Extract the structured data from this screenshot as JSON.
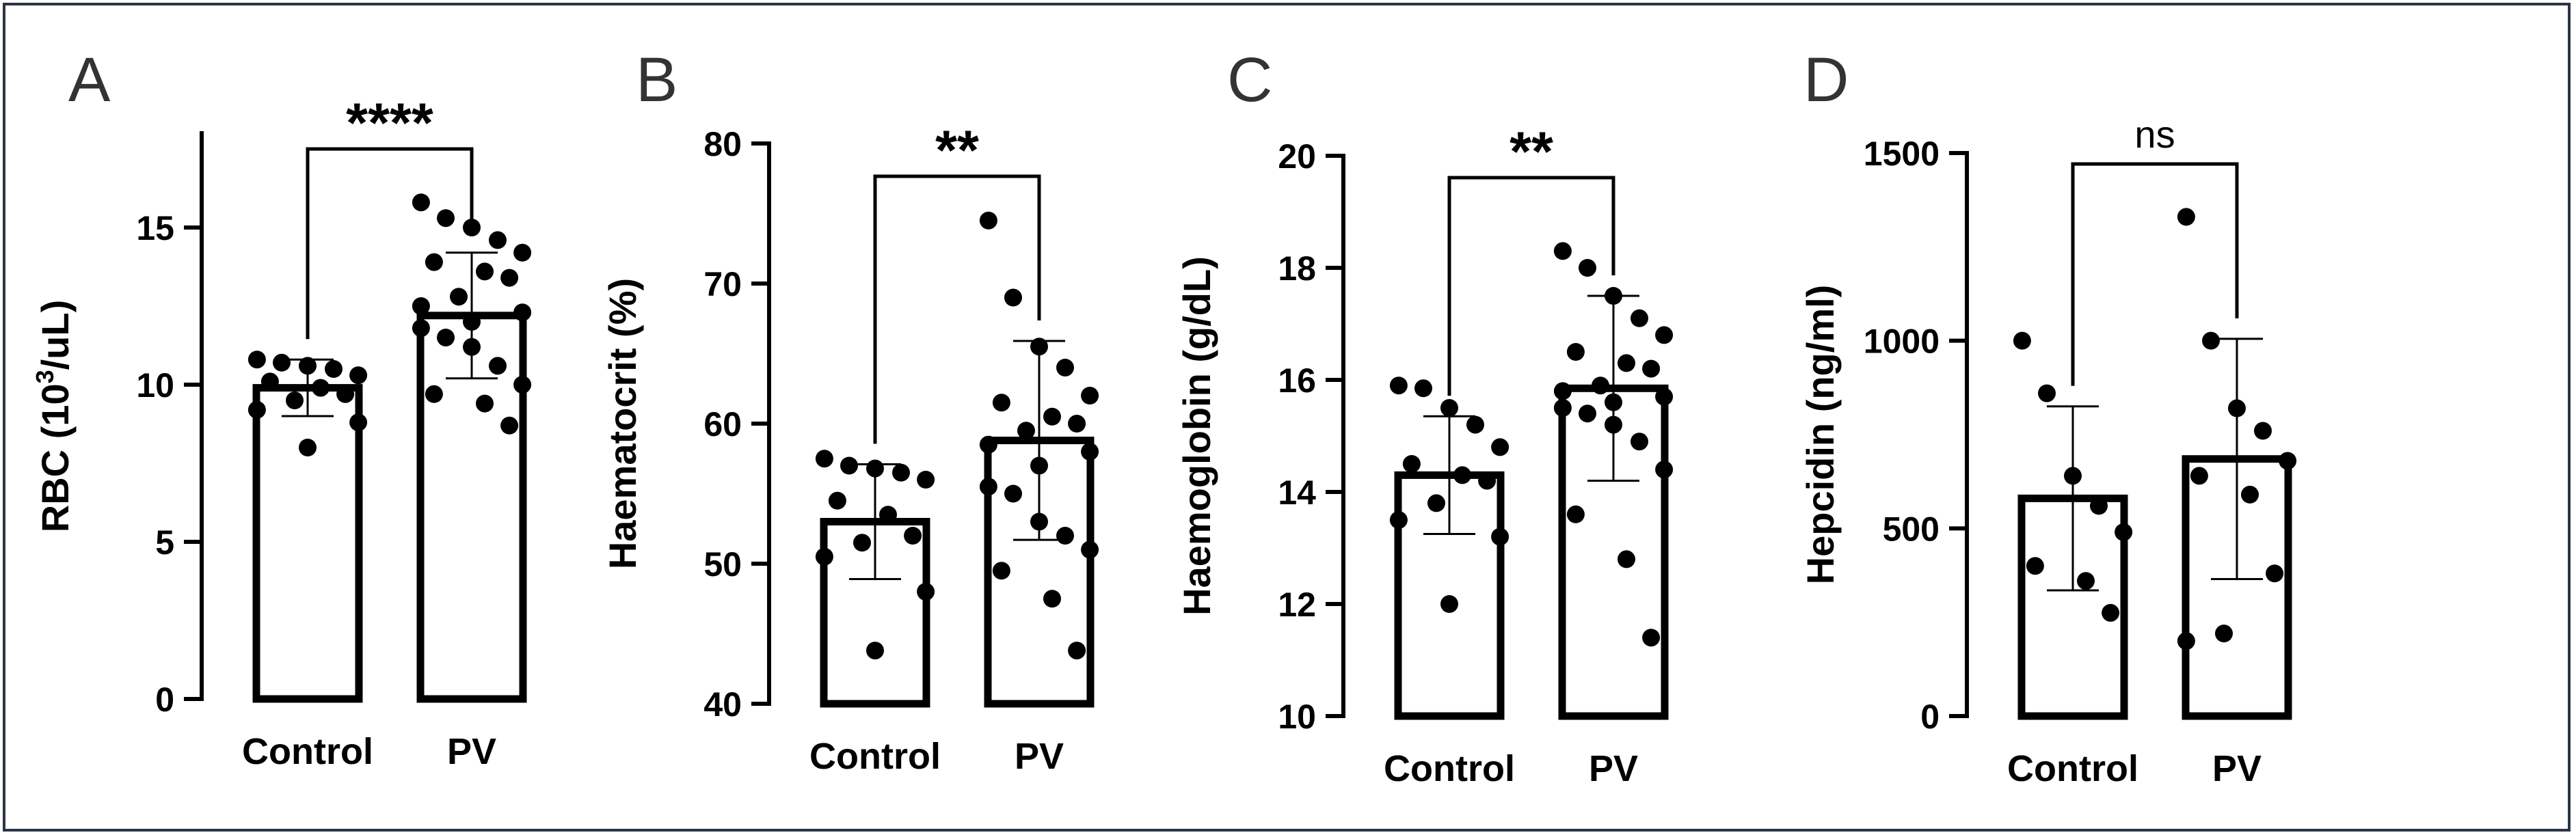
{
  "chart_data": [
    {
      "type": "bar",
      "panel": "A",
      "categories": [
        "Control",
        "PV"
      ],
      "ylabel_parts": [
        "RBC (10",
        "3",
        "/uL)"
      ],
      "ylim": [
        0,
        18
      ],
      "yticks": [
        0,
        5,
        10,
        15
      ],
      "means": [
        9.9,
        12.2
      ],
      "sd": [
        0.9,
        2.0
      ],
      "points": [
        [
          10.8,
          10.7,
          10.6,
          10.5,
          10.3,
          10.1,
          9.9,
          9.7,
          9.5,
          9.2,
          8.8,
          8.0
        ],
        [
          15.8,
          15.3,
          15.0,
          14.6,
          14.2,
          13.9,
          13.6,
          13.4,
          12.8,
          12.5,
          12.3,
          12.0,
          11.8,
          11.5,
          11.2,
          10.6,
          10.0,
          9.7,
          9.4,
          8.7
        ]
      ],
      "significance": "****",
      "grid": false
    },
    {
      "type": "bar",
      "panel": "B",
      "categories": [
        "Control",
        "PV"
      ],
      "ylabel": "Haematocrit (%)",
      "ylim": [
        40,
        80
      ],
      "yticks": [
        40,
        50,
        60,
        70,
        80
      ],
      "means": [
        53.0,
        58.8
      ],
      "sd": [
        4.1,
        7.1
      ],
      "points": [
        [
          57.5,
          57.0,
          56.8,
          56.5,
          56.0,
          54.5,
          53.5,
          52.0,
          51.5,
          50.5,
          48.0,
          43.8
        ],
        [
          74.5,
          69.0,
          65.5,
          64.0,
          62.0,
          61.5,
          60.5,
          60.0,
          59.5,
          58.5,
          58.0,
          57.0,
          55.5,
          55.0,
          53.0,
          52.0,
          51.0,
          49.5,
          47.5,
          43.8
        ]
      ],
      "significance": "**",
      "grid": false
    },
    {
      "type": "bar",
      "panel": "C",
      "categories": [
        "Control",
        "PV"
      ],
      "ylabel": "Haemoglobin (g/dL)",
      "ylim": [
        10,
        20
      ],
      "yticks": [
        10,
        12,
        14,
        16,
        18,
        20
      ],
      "means": [
        14.3,
        15.85
      ],
      "sd": [
        1.05,
        1.65
      ],
      "points": [
        [
          15.9,
          15.85,
          15.5,
          15.2,
          14.8,
          14.5,
          14.3,
          14.2,
          13.8,
          13.5,
          13.2,
          12.0
        ],
        [
          18.3,
          18.0,
          17.5,
          17.1,
          16.8,
          16.5,
          16.3,
          16.2,
          15.9,
          15.8,
          15.7,
          15.6,
          15.5,
          15.4,
          15.2,
          14.9,
          14.4,
          13.6,
          12.8,
          11.4
        ]
      ],
      "significance": "**",
      "grid": false
    },
    {
      "type": "bar",
      "panel": "D",
      "categories": [
        "Control",
        "PV"
      ],
      "ylabel": "Hepcidin (ng/ml)",
      "ylim": [
        0,
        1500
      ],
      "yticks": [
        0,
        500,
        1000,
        1500
      ],
      "means": [
        580,
        685
      ],
      "sd": [
        245,
        320
      ],
      "points": [
        [
          1000,
          860,
          640,
          560,
          490,
          400,
          360,
          275
        ],
        [
          1330,
          1000,
          820,
          760,
          680,
          640,
          590,
          380,
          220,
          200
        ]
      ],
      "significance": "ns",
      "grid": false
    }
  ]
}
